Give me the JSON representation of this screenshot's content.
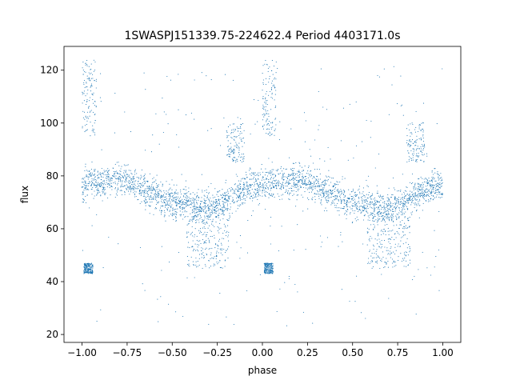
{
  "chart_data": {
    "type": "scatter",
    "title": "1SWASPJ151339.75-224622.4 Period 4403171.0s",
    "xlabel": "phase",
    "ylabel": "flux",
    "xlim": [
      -1.1,
      1.1
    ],
    "ylim": [
      17,
      129
    ],
    "x_ticks": [
      -1.0,
      -0.75,
      -0.5,
      -0.25,
      0.0,
      0.25,
      0.5,
      0.75,
      1.0
    ],
    "x_tick_labels": [
      "−1.00",
      "−0.75",
      "−0.50",
      "−0.25",
      "0.00",
      "0.25",
      "0.50",
      "0.75",
      "1.00"
    ],
    "y_ticks": [
      20,
      40,
      60,
      80,
      100,
      120
    ],
    "y_tick_labels": [
      "20",
      "40",
      "60",
      "80",
      "100",
      "120"
    ],
    "grid": false,
    "legend": "none",
    "marker_color": "#1f77b4",
    "series": [
      {
        "phase_profile": [
          [
            -1.0,
            76
          ],
          [
            -0.95,
            78
          ],
          [
            -0.9,
            77
          ],
          [
            -0.85,
            78
          ],
          [
            -0.8,
            79
          ],
          [
            -0.75,
            78
          ],
          [
            -0.7,
            76
          ],
          [
            -0.65,
            74
          ],
          [
            -0.6,
            73
          ],
          [
            -0.55,
            71
          ],
          [
            -0.5,
            70
          ],
          [
            -0.45,
            70
          ],
          [
            -0.4,
            69
          ],
          [
            -0.35,
            68
          ],
          [
            -0.3,
            68
          ],
          [
            -0.25,
            69
          ],
          [
            -0.2,
            71
          ],
          [
            -0.15,
            73
          ],
          [
            -0.1,
            75
          ],
          [
            -0.05,
            76
          ],
          [
            0.0,
            76
          ],
          [
            0.05,
            78
          ],
          [
            0.1,
            77
          ],
          [
            0.15,
            78
          ],
          [
            0.2,
            79
          ],
          [
            0.25,
            78
          ],
          [
            0.3,
            76
          ],
          [
            0.35,
            74
          ],
          [
            0.4,
            73
          ],
          [
            0.45,
            71
          ],
          [
            0.5,
            70
          ],
          [
            0.55,
            70
          ],
          [
            0.6,
            69
          ],
          [
            0.65,
            68
          ],
          [
            0.7,
            68
          ],
          [
            0.75,
            69
          ],
          [
            0.8,
            71
          ],
          [
            0.85,
            73
          ],
          [
            0.9,
            75
          ],
          [
            0.95,
            76
          ],
          [
            1.0,
            76
          ]
        ],
        "scatter_spread": 5,
        "dip_segments": [
          [
            -0.42,
            -0.18,
            45,
            65
          ],
          [
            0.58,
            0.82,
            45,
            65
          ],
          [
            -0.99,
            -0.94,
            43,
            47
          ],
          [
            0.01,
            0.06,
            43,
            47
          ]
        ],
        "spike_segments": [
          [
            -1.0,
            -0.92,
            95,
            124
          ],
          [
            0.0,
            0.08,
            95,
            124
          ],
          [
            -0.2,
            -0.1,
            85,
            100
          ],
          [
            0.8,
            0.9,
            85,
            100
          ]
        ]
      }
    ]
  }
}
